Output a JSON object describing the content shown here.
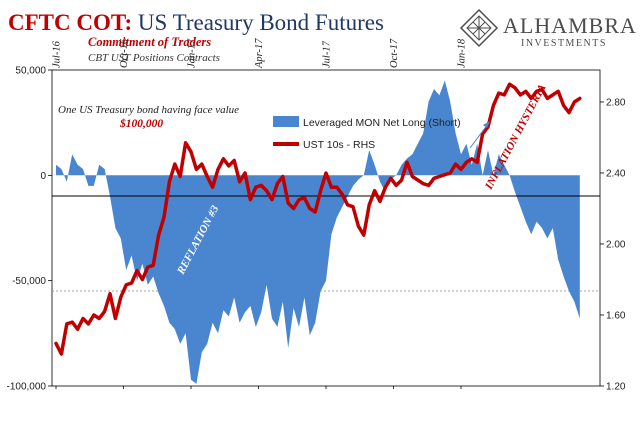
{
  "header": {
    "title_part1": "CFTC COT:",
    "title_part2": " US Treasury Bond Futures",
    "subtitle": "Commitment of Traders",
    "subtitle2": "CBT UST Positions Contracts"
  },
  "brand": {
    "name": "ALHAMBRA",
    "sub": "INVESTMENTS"
  },
  "note": {
    "line1": "One US Treasury bond having face value",
    "line2": "$100,000"
  },
  "annotations": {
    "reflation": "REFLATION #3",
    "inflation": "INFLATION HYSTERIA"
  },
  "colors": {
    "area": "#4a86cf",
    "line": "#c00000",
    "title_red": "#c00000",
    "title_blue": "#1f3864"
  },
  "chart_data": {
    "type": "area",
    "title": "CFTC COT: US Treasury Bond Futures",
    "subtitle": "Commitment of Traders",
    "x_tick_labels": [
      "Jul-16",
      "Oct-16",
      "Jan-17",
      "Apr-17",
      "Jul-17",
      "Oct-17",
      "Jan-18"
    ],
    "x_range": [
      2016.5,
      2018.5
    ],
    "left_axis": {
      "ticks": [
        50000,
        0,
        -50000,
        -100000
      ],
      "tick_labels": [
        "50,000",
        "0",
        "-50,000",
        "-100,000"
      ],
      "range": [
        -100000,
        50000
      ]
    },
    "right_axis": {
      "ticks": [
        2.8,
        2.4,
        2.0,
        1.6,
        1.2
      ],
      "tick_labels": [
        "2.80",
        "2.40",
        "2.00",
        "1.60",
        "1.20"
      ],
      "range": [
        1.2,
        2.98
      ]
    },
    "grid": "dashed horizontal line at -50,000",
    "series": [
      {
        "name": "Leveraged MON Net Long (Short)",
        "axis": "left",
        "type": "area",
        "x": [
          2016.5,
          2016.52,
          2016.54,
          2016.56,
          2016.58,
          2016.6,
          2016.62,
          2016.64,
          2016.66,
          2016.68,
          2016.7,
          2016.72,
          2016.74,
          2016.76,
          2016.78,
          2016.8,
          2016.82,
          2016.84,
          2016.86,
          2016.88,
          2016.9,
          2016.92,
          2016.94,
          2016.96,
          2016.98,
          2017.0,
          2017.02,
          2017.04,
          2017.06,
          2017.08,
          2017.1,
          2017.12,
          2017.14,
          2017.16,
          2017.18,
          2017.2,
          2017.22,
          2017.24,
          2017.26,
          2017.28,
          2017.3,
          2017.32,
          2017.34,
          2017.36,
          2017.38,
          2017.4,
          2017.42,
          2017.44,
          2017.46,
          2017.48,
          2017.5,
          2017.52,
          2017.54,
          2017.56,
          2017.58,
          2017.6,
          2017.62,
          2017.64,
          2017.66,
          2017.68,
          2017.7,
          2017.72,
          2017.74,
          2017.76,
          2017.78,
          2017.8,
          2017.82,
          2017.84,
          2017.86,
          2017.88,
          2017.9,
          2017.92,
          2017.94,
          2017.96,
          2017.98,
          2018.0,
          2018.02,
          2018.04,
          2018.06,
          2018.08,
          2018.1,
          2018.12,
          2018.14,
          2018.16,
          2018.18,
          2018.2,
          2018.22,
          2018.24,
          2018.26,
          2018.28,
          2018.3,
          2018.32,
          2018.34,
          2018.36,
          2018.38,
          2018.4,
          2018.42,
          2018.44
        ],
        "values": [
          5000,
          3000,
          -3000,
          10000,
          5000,
          3000,
          -5000,
          -5000,
          5000,
          3000,
          -10000,
          -25000,
          -30000,
          -45000,
          -38000,
          -50000,
          -42000,
          -52000,
          -48000,
          -56000,
          -62000,
          -70000,
          -73000,
          -80000,
          -75000,
          -97000,
          -99000,
          -84000,
          -80000,
          -70000,
          -75000,
          -64000,
          -67000,
          -58000,
          -70000,
          -65000,
          -62000,
          -72000,
          -65000,
          -52000,
          -68000,
          -72000,
          -60000,
          -82000,
          -63000,
          -72000,
          -58000,
          -76000,
          -70000,
          -55000,
          -50000,
          -28000,
          -20000,
          -15000,
          -10000,
          -5000,
          -2000,
          0,
          12000,
          5000,
          -3000,
          -8000,
          -2000,
          0,
          5000,
          8000,
          10000,
          15000,
          20000,
          35000,
          41000,
          38000,
          45000,
          35000,
          20000,
          10000,
          15000,
          5000,
          15000,
          0,
          12000,
          0,
          10000,
          5000,
          0,
          -8000,
          -15000,
          -22000,
          -28000,
          -22000,
          -25000,
          -30000,
          -25000,
          -40000,
          -48000,
          -55000,
          -60000,
          -68000
        ]
      },
      {
        "name": "UST 10s - RHS",
        "axis": "right",
        "type": "line",
        "x": [
          2016.5,
          2016.52,
          2016.54,
          2016.56,
          2016.58,
          2016.6,
          2016.62,
          2016.64,
          2016.66,
          2016.68,
          2016.7,
          2016.72,
          2016.74,
          2016.76,
          2016.78,
          2016.8,
          2016.82,
          2016.84,
          2016.86,
          2016.88,
          2016.9,
          2016.92,
          2016.94,
          2016.96,
          2016.98,
          2017.0,
          2017.02,
          2017.04,
          2017.06,
          2017.08,
          2017.1,
          2017.12,
          2017.14,
          2017.16,
          2017.18,
          2017.2,
          2017.22,
          2017.24,
          2017.26,
          2017.28,
          2017.3,
          2017.32,
          2017.34,
          2017.36,
          2017.38,
          2017.4,
          2017.42,
          2017.44,
          2017.46,
          2017.48,
          2017.5,
          2017.52,
          2017.54,
          2017.56,
          2017.58,
          2017.6,
          2017.62,
          2017.64,
          2017.66,
          2017.68,
          2017.7,
          2017.72,
          2017.74,
          2017.76,
          2017.78,
          2017.8,
          2017.82,
          2017.84,
          2017.86,
          2017.88,
          2017.9,
          2017.92,
          2017.94,
          2017.96,
          2017.98,
          2018.0,
          2018.02,
          2018.04,
          2018.06,
          2018.08,
          2018.1,
          2018.12,
          2018.14,
          2018.16,
          2018.18,
          2018.2,
          2018.22,
          2018.24,
          2018.26,
          2018.28,
          2018.3,
          2018.32,
          2018.34,
          2018.36,
          2018.38,
          2018.4,
          2018.42,
          2018.44
        ],
        "values": [
          1.44,
          1.38,
          1.55,
          1.56,
          1.52,
          1.58,
          1.55,
          1.6,
          1.58,
          1.62,
          1.72,
          1.58,
          1.7,
          1.77,
          1.78,
          1.85,
          1.8,
          1.87,
          1.88,
          2.05,
          2.15,
          2.35,
          2.45,
          2.38,
          2.57,
          2.52,
          2.42,
          2.45,
          2.38,
          2.32,
          2.42,
          2.48,
          2.44,
          2.47,
          2.35,
          2.4,
          2.25,
          2.32,
          2.33,
          2.3,
          2.25,
          2.34,
          2.38,
          2.23,
          2.2,
          2.25,
          2.26,
          2.2,
          2.18,
          2.3,
          2.4,
          2.32,
          2.32,
          2.28,
          2.22,
          2.21,
          2.1,
          2.05,
          2.22,
          2.3,
          2.24,
          2.32,
          2.37,
          2.33,
          2.36,
          2.46,
          2.38,
          2.36,
          2.34,
          2.33,
          2.37,
          2.38,
          2.39,
          2.4,
          2.45,
          2.42,
          2.46,
          2.48,
          2.46,
          2.62,
          2.66,
          2.78,
          2.85,
          2.84,
          2.9,
          2.88,
          2.84,
          2.86,
          2.82,
          2.86,
          2.87,
          2.82,
          2.84,
          2.86,
          2.78,
          2.74,
          2.8,
          2.82
        ]
      }
    ],
    "legend": [
      "Leveraged MON Net Long (Short)",
      "UST 10s - RHS"
    ]
  }
}
